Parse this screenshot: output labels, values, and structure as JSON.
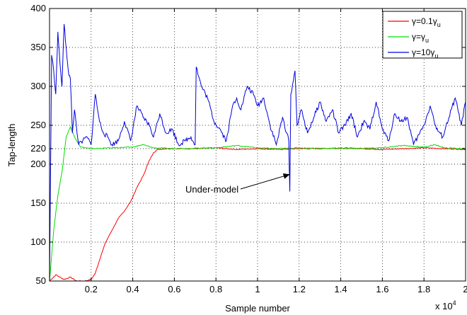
{
  "chart_data": {
    "type": "line",
    "title": "",
    "xlabel": "Sample number",
    "ylabel": "Tap-length",
    "x_multiplier_label": "x 10",
    "x_multiplier_exp": "4",
    "xlim": [
      0,
      20000
    ],
    "ylim": [
      50,
      400
    ],
    "xticks": [
      2000,
      4000,
      6000,
      8000,
      10000,
      12000,
      14000,
      16000,
      18000,
      20000
    ],
    "xtick_labels": [
      "0.2",
      "0.4",
      "0.6",
      "0.8",
      "1",
      "1.2",
      "1.4",
      "1.6",
      "1.8",
      "2"
    ],
    "yticks": [
      50,
      100,
      150,
      200,
      220,
      250,
      300,
      350,
      400
    ],
    "grid": true,
    "legend_position": "top-right",
    "annotation": {
      "text": "Under-model",
      "x": 11550,
      "y": 165
    },
    "series": [
      {
        "name_parts": [
          "γ=0.1γ",
          "u"
        ],
        "color": "#ff0000",
        "x": [
          0,
          300,
          700,
          1000,
          1300,
          1700,
          2000,
          2200,
          2500,
          2700,
          3000,
          3300,
          3600,
          3900,
          4200,
          4500,
          4800,
          5000,
          5200,
          5600,
          6000,
          7000,
          8000,
          9000,
          10000,
          11000,
          12000,
          13000,
          14000,
          15000,
          16000,
          17000,
          18000,
          19000,
          20000
        ],
        "y": [
          50,
          58,
          52,
          55,
          50,
          50,
          52,
          60,
          85,
          100,
          115,
          130,
          140,
          152,
          170,
          185,
          205,
          215,
          219,
          220,
          220,
          220,
          221,
          219,
          220,
          219,
          220,
          220,
          221,
          220,
          219,
          220,
          221,
          220,
          219
        ]
      },
      {
        "name_parts": [
          "γ=γ",
          "u"
        ],
        "color": "#00dd00",
        "x": [
          0,
          200,
          400,
          600,
          800,
          1000,
          1200,
          1500,
          2000,
          3000,
          4000,
          4500,
          5000,
          6000,
          8000,
          9000,
          10000,
          11000,
          12000,
          14000,
          16000,
          17000,
          18000,
          18500,
          19000,
          20000
        ],
        "y": [
          50,
          115,
          160,
          190,
          235,
          248,
          235,
          222,
          220,
          221,
          222,
          225,
          221,
          220,
          221,
          224,
          221,
          220,
          221,
          220,
          221,
          224,
          222,
          225,
          221,
          220
        ]
      },
      {
        "name_parts": [
          "γ=10γ",
          "u"
        ],
        "color": "#0000dd",
        "x": [
          0,
          100,
          200,
          300,
          400,
          500,
          600,
          700,
          800,
          900,
          1000,
          1100,
          1200,
          1400,
          1600,
          1800,
          2000,
          2200,
          2400,
          2600,
          2800,
          3000,
          3300,
          3600,
          3900,
          4200,
          4500,
          4800,
          5000,
          5300,
          5600,
          5900,
          6200,
          6500,
          6800,
          7000,
          7050,
          7300,
          7600,
          7900,
          8200,
          8500,
          8800,
          9000,
          9200,
          9500,
          9800,
          10000,
          10300,
          10600,
          10900,
          11200,
          11500,
          11550,
          11600,
          11800,
          11900,
          12100,
          12400,
          12700,
          13000,
          13300,
          13600,
          13900,
          14200,
          14500,
          14800,
          15100,
          15400,
          15700,
          16000,
          16300,
          16600,
          16900,
          17200,
          17500,
          17800,
          18000,
          18300,
          18600,
          18900,
          19200,
          19500,
          19800,
          20000
        ],
        "y": [
          50,
          340,
          320,
          290,
          370,
          330,
          300,
          380,
          350,
          320,
          310,
          240,
          270,
          225,
          230,
          235,
          225,
          290,
          255,
          240,
          235,
          225,
          230,
          255,
          230,
          275,
          260,
          250,
          235,
          265,
          240,
          245,
          225,
          230,
          235,
          225,
          325,
          300,
          285,
          255,
          245,
          230,
          275,
          285,
          270,
          300,
          290,
          275,
          285,
          250,
          225,
          260,
          230,
          165,
          290,
          320,
          250,
          270,
          240,
          260,
          280,
          255,
          270,
          240,
          250,
          265,
          235,
          255,
          245,
          280,
          245,
          230,
          265,
          255,
          260,
          225,
          240,
          250,
          275,
          245,
          235,
          260,
          285,
          250,
          280
        ]
      }
    ]
  }
}
